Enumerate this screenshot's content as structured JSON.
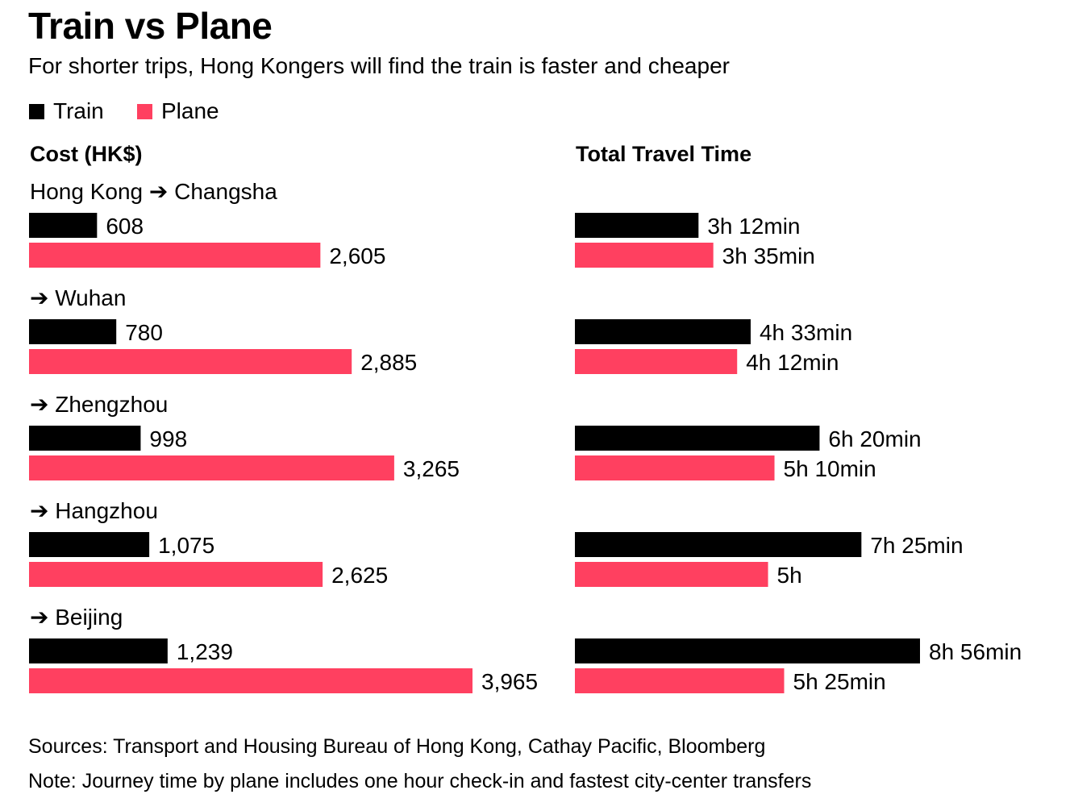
{
  "header": {
    "title": "Train vs Plane",
    "subtitle": "For shorter trips, Hong Kongers will find the train is faster and cheaper"
  },
  "legend": [
    {
      "label": "Train",
      "color": "#000000"
    },
    {
      "label": "Plane",
      "color": "#ff4060"
    }
  ],
  "panels": {
    "cost_title": "Cost (HK$)",
    "time_title": "Total Travel Time"
  },
  "chart_data": {
    "type": "bar",
    "orientation": "horizontal",
    "categories": [
      "Hong Kong ➔ Changsha",
      "➔ Wuhan",
      "➔ Zhengzhou",
      "➔ Hangzhou",
      "➔ Beijing"
    ],
    "cost": {
      "title": "Cost (HK$)",
      "series": [
        {
          "name": "Train",
          "color": "#000000",
          "values": [
            608,
            780,
            998,
            1075,
            1239
          ],
          "labels": [
            "608",
            "780",
            "998",
            "1,075",
            "1,239"
          ]
        },
        {
          "name": "Plane",
          "color": "#ff4060",
          "values": [
            2605,
            2885,
            3265,
            2625,
            3965
          ],
          "labels": [
            "2,605",
            "2,885",
            "3,265",
            "2,625",
            "3,965"
          ]
        }
      ],
      "xlim": [
        0,
        4000
      ]
    },
    "time": {
      "title": "Total Travel Time",
      "unit": "minutes",
      "series": [
        {
          "name": "Train",
          "color": "#000000",
          "values": [
            192,
            273,
            380,
            445,
            536
          ],
          "labels": [
            "3h 12min",
            "4h 33min",
            "6h 20min",
            "7h 25min",
            "8h 56min"
          ]
        },
        {
          "name": "Plane",
          "color": "#ff4060",
          "values": [
            215,
            252,
            310,
            300,
            325
          ],
          "labels": [
            "3h 35min",
            "4h 12min",
            "5h 10min",
            "5h",
            "5h 25min"
          ]
        }
      ],
      "xlim": [
        0,
        560
      ]
    }
  },
  "footer": {
    "sources": "Sources: Transport and Housing Bureau of Hong Kong, Cathay Pacific, Bloomberg",
    "note": "Note: Journey time by plane includes one hour check-in and fastest city-center transfers"
  }
}
